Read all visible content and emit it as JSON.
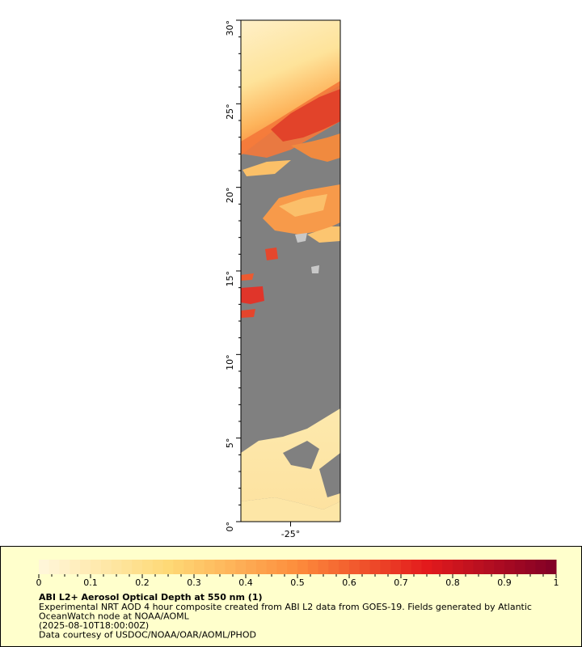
{
  "map": {
    "ylim": [
      0,
      30
    ],
    "yticks": [
      {
        "value": 0,
        "label": "0°"
      },
      {
        "value": 5,
        "label": "5°"
      },
      {
        "value": 10,
        "label": "10°"
      },
      {
        "value": 15,
        "label": "15°"
      },
      {
        "value": 20,
        "label": "20°"
      },
      {
        "value": 25,
        "label": "25°"
      },
      {
        "value": 30,
        "label": "30°"
      }
    ],
    "xlim": [
      -28,
      -22
    ],
    "xticks": [
      {
        "value": -25,
        "label": "-25°"
      }
    ],
    "colorbar": {
      "range": [
        0,
        1
      ],
      "ticks": [
        0,
        0.1,
        0.2,
        0.3,
        0.4,
        0.5,
        0.6,
        0.7,
        0.8,
        0.9,
        1
      ],
      "colors": [
        "#fff7dc",
        "#fed976",
        "#fd8d3c",
        "#e31a1c",
        "#800026"
      ]
    },
    "title": "ABI L2+ Aerosol Optical Depth at 550 nm (1)",
    "caption": [
      "Experimental NRT AOD 4 hour composite created from ABI L2 data from GOES-19. Fields generated by Atlantic",
      "OceanWatch node at NOAA/AOML",
      "(2025-08-10T18:00:00Z)",
      "Data courtesy of USDOC/NOAA/OAR/AOML/PHOD"
    ]
  }
}
